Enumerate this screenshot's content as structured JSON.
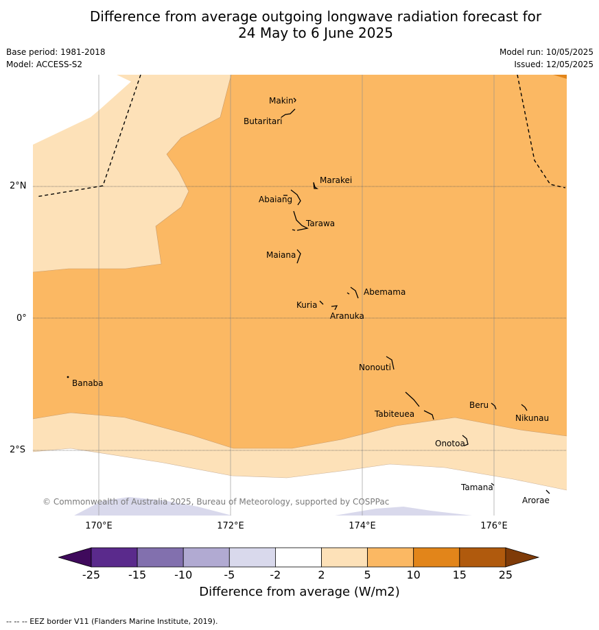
{
  "title_line1": "Difference from average outgoing longwave radiation forecast for",
  "title_line2": "24 May to 6 June 2025",
  "base_period": "Base period: 1981-2018",
  "model": "Model: ACCESS-S2",
  "model_run": "Model run: 10/05/2025",
  "issued": "Issued: 12/05/2025",
  "lat_labels": [
    "2°N",
    "0°",
    "2°S"
  ],
  "lon_labels": [
    "170°E",
    "172°E",
    "174°E",
    "176°E"
  ],
  "places": {
    "makin": "Makin",
    "butaritari": "Butaritari",
    "marakei": "Marakei",
    "abaiang": "Abaiang",
    "tarawa": "Tarawa",
    "maiana": "Maiana",
    "abemama": "Abemama",
    "kuria": "Kuria",
    "aranuka": "Aranuka",
    "nonouti": "Nonouti",
    "banaba": "Banaba",
    "beru": "Beru",
    "tabiteuea": "Tabiteuea",
    "nikunau": "Nikunau",
    "onotoa": "Onotoa",
    "tamana": "Tamana",
    "arorae": "Arorae"
  },
  "copyright": "© Commonwealth of Australia 2025, Bureau of Meteorology, supported by COSPPac",
  "colorbar": {
    "ticks": [
      "-25",
      "-15",
      "-10",
      "-5",
      "-2",
      "2",
      "5",
      "10",
      "15",
      "25"
    ],
    "colors": [
      "#3f0a5c",
      "#5a2a8c",
      "#8270ae",
      "#b1aad2",
      "#d9d9ec",
      "#ffffff",
      "#fde1b8",
      "#fbb863",
      "#e2851a",
      "#b05a0d",
      "#7f3b08"
    ],
    "title": "Difference from average (W/m2)"
  },
  "footnote": "-- -- -- EEZ border V11 (Flanders Marine Institute, 2019)."
}
